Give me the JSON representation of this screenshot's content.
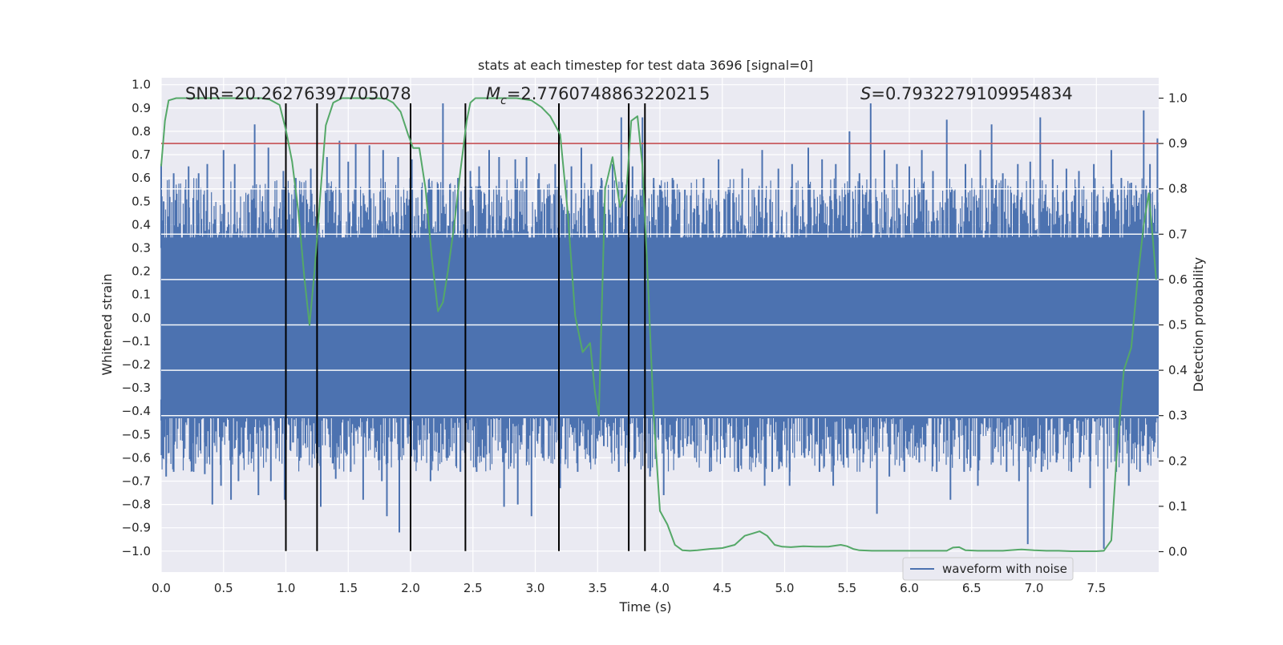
{
  "chart_data": {
    "type": "line",
    "title": "stats at each timestep for test data 3696 [signal=0]",
    "xlabel": "Time (s)",
    "ylabel": "Whitened strain",
    "y2label": "Detection probability",
    "xlim": [
      0.0,
      8.0
    ],
    "ylim": [
      -1.09,
      1.03
    ],
    "y2lim": [
      -0.045,
      1.045
    ],
    "xticks": [
      "0.0",
      "0.5",
      "1.0",
      "1.5",
      "2.0",
      "2.5",
      "3.0",
      "3.5",
      "4.0",
      "4.5",
      "5.0",
      "5.5",
      "6.0",
      "6.5",
      "7.0",
      "7.5"
    ],
    "xtick_values": [
      0.0,
      0.5,
      1.0,
      1.5,
      2.0,
      2.5,
      3.0,
      3.5,
      4.0,
      4.5,
      5.0,
      5.5,
      6.0,
      6.5,
      7.0,
      7.5
    ],
    "yticks": [
      "1.0",
      "0.9",
      "0.8",
      "0.7",
      "0.6",
      "0.5",
      "0.4",
      "0.3",
      "0.2",
      "0.1",
      "0.0",
      "−0.1",
      "−0.2",
      "−0.3",
      "−0.4",
      "−0.5",
      "−0.6",
      "−0.7",
      "−0.8",
      "−0.9",
      "−1.0"
    ],
    "ytick_values": [
      1.0,
      0.9,
      0.8,
      0.7,
      0.6,
      0.5,
      0.4,
      0.3,
      0.2,
      0.1,
      0.0,
      -0.1,
      -0.2,
      -0.3,
      -0.4,
      -0.5,
      -0.6,
      -0.7,
      -0.8,
      -0.9,
      -1.0
    ],
    "y2ticks": [
      "1.0",
      "0.9",
      "0.8",
      "0.7",
      "0.6",
      "0.5",
      "0.4",
      "0.3",
      "0.2",
      "0.1",
      "0.0"
    ],
    "y2tick_values": [
      1.0,
      0.9,
      0.8,
      0.7,
      0.6,
      0.5,
      0.4,
      0.3,
      0.2,
      0.1,
      0.0
    ],
    "threshold": 0.9,
    "threshold_color": "#c44e52",
    "event_lines": [
      1.0,
      1.25,
      2.0,
      2.44,
      3.19,
      3.75,
      3.88
    ],
    "event_line_range": [
      -1.0,
      0.92
    ],
    "annotations": {
      "snr": "SNR=20.26276397705078",
      "mc_symbol": "M",
      "mc_sub": "c",
      "mc_value": "=2.776074886322021 5",
      "s_symbol": "S",
      "s_value": "=0.7932279109954834"
    },
    "waveform": {
      "name": "waveform with noise",
      "color": "#4c72b0",
      "t_start": 0.0,
      "t_end": 8.0,
      "spikes_up": [
        [
          0.0,
          0.66
        ],
        [
          0.02,
          0.5
        ],
        [
          0.1,
          0.62
        ],
        [
          0.22,
          0.65
        ],
        [
          0.3,
          0.62
        ],
        [
          0.37,
          0.66
        ],
        [
          0.5,
          0.72
        ],
        [
          0.59,
          0.66
        ],
        [
          0.75,
          0.83
        ],
        [
          0.86,
          0.73
        ],
        [
          0.98,
          0.63
        ],
        [
          1.08,
          0.6
        ],
        [
          1.2,
          0.64
        ],
        [
          1.33,
          0.69
        ],
        [
          1.43,
          0.76
        ],
        [
          1.5,
          0.67
        ],
        [
          1.56,
          0.75
        ],
        [
          1.67,
          0.74
        ],
        [
          1.78,
          0.72
        ],
        [
          1.9,
          0.69
        ],
        [
          2.01,
          0.68
        ],
        [
          2.15,
          0.58
        ],
        [
          2.26,
          0.92
        ],
        [
          2.38,
          0.6
        ],
        [
          2.48,
          0.63
        ],
        [
          2.55,
          0.65
        ],
        [
          2.63,
          0.72
        ],
        [
          2.71,
          0.69
        ],
        [
          2.84,
          0.68
        ],
        [
          2.93,
          0.69
        ],
        [
          3.03,
          0.62
        ],
        [
          3.16,
          0.66
        ],
        [
          3.29,
          0.65
        ],
        [
          3.37,
          0.73
        ],
        [
          3.45,
          0.66
        ],
        [
          3.53,
          0.6
        ],
        [
          3.62,
          0.66
        ],
        [
          3.69,
          0.86
        ],
        [
          3.78,
          0.65
        ],
        [
          3.86,
          0.86
        ],
        [
          3.95,
          0.6
        ],
        [
          4.1,
          0.6
        ],
        [
          4.2,
          0.55
        ],
        [
          4.35,
          0.6
        ],
        [
          4.47,
          0.68
        ],
        [
          4.55,
          0.56
        ],
        [
          4.66,
          0.64
        ],
        [
          4.82,
          0.72
        ],
        [
          4.95,
          0.64
        ],
        [
          5.06,
          0.66
        ],
        [
          5.19,
          0.73
        ],
        [
          5.3,
          0.68
        ],
        [
          5.41,
          0.66
        ],
        [
          5.52,
          0.8
        ],
        [
          5.6,
          0.62
        ],
        [
          5.69,
          0.92
        ],
        [
          5.8,
          0.72
        ],
        [
          5.9,
          0.66
        ],
        [
          6.0,
          0.65
        ],
        [
          6.1,
          0.72
        ],
        [
          6.19,
          0.63
        ],
        [
          6.3,
          0.85
        ],
        [
          6.45,
          0.66
        ],
        [
          6.57,
          0.72
        ],
        [
          6.66,
          0.83
        ],
        [
          6.75,
          0.62
        ],
        [
          6.87,
          0.66
        ],
        [
          6.97,
          0.67
        ],
        [
          7.05,
          0.86
        ],
        [
          7.15,
          0.68
        ],
        [
          7.26,
          0.64
        ],
        [
          7.36,
          0.63
        ],
        [
          7.48,
          0.66
        ],
        [
          7.62,
          0.72
        ],
        [
          7.7,
          0.6
        ],
        [
          7.78,
          0.58
        ],
        [
          7.88,
          0.89
        ],
        [
          7.93,
          0.66
        ],
        [
          7.99,
          0.77
        ]
      ],
      "spikes_down": [
        [
          0.0,
          -0.44
        ],
        [
          0.04,
          -0.68
        ],
        [
          0.1,
          -0.66
        ],
        [
          0.18,
          -0.6
        ],
        [
          0.26,
          -0.66
        ],
        [
          0.35,
          -0.67
        ],
        [
          0.41,
          -0.8
        ],
        [
          0.48,
          -0.72
        ],
        [
          0.56,
          -0.78
        ],
        [
          0.62,
          -0.7
        ],
        [
          0.78,
          -0.76
        ],
        [
          0.88,
          -0.7
        ],
        [
          0.99,
          -0.78
        ],
        [
          1.12,
          -0.6
        ],
        [
          1.25,
          -0.54
        ],
        [
          1.28,
          -0.81
        ],
        [
          1.4,
          -0.69
        ],
        [
          1.52,
          -0.66
        ],
        [
          1.62,
          -0.78
        ],
        [
          1.77,
          -0.7
        ],
        [
          1.81,
          -0.85
        ],
        [
          1.91,
          -0.92
        ],
        [
          2.05,
          -0.62
        ],
        [
          2.16,
          -0.7
        ],
        [
          2.3,
          -0.6
        ],
        [
          2.4,
          -0.66
        ],
        [
          2.53,
          -0.66
        ],
        [
          2.59,
          -0.6
        ],
        [
          2.75,
          -0.81
        ],
        [
          2.86,
          -0.8
        ],
        [
          2.97,
          -0.85
        ],
        [
          3.06,
          -0.6
        ],
        [
          3.2,
          -0.73
        ],
        [
          3.34,
          -0.66
        ],
        [
          3.44,
          -0.62
        ],
        [
          3.55,
          -0.55
        ],
        [
          3.67,
          -0.66
        ],
        [
          3.8,
          -0.6
        ],
        [
          3.92,
          -0.68
        ],
        [
          4.03,
          -0.76
        ],
        [
          4.15,
          -0.6
        ],
        [
          4.28,
          -0.6
        ],
        [
          4.4,
          -0.66
        ],
        [
          4.52,
          -0.6
        ],
        [
          4.63,
          -0.66
        ],
        [
          4.74,
          -0.6
        ],
        [
          4.84,
          -0.72
        ],
        [
          4.9,
          -0.66
        ],
        [
          5.04,
          -0.72
        ],
        [
          5.16,
          -0.6
        ],
        [
          5.28,
          -0.66
        ],
        [
          5.39,
          -0.72
        ],
        [
          5.5,
          -0.6
        ],
        [
          5.63,
          -0.62
        ],
        [
          5.74,
          -0.84
        ],
        [
          5.84,
          -0.68
        ],
        [
          5.96,
          -0.66
        ],
        [
          6.08,
          -0.62
        ],
        [
          6.22,
          -0.66
        ],
        [
          6.33,
          -0.78
        ],
        [
          6.44,
          -0.66
        ],
        [
          6.55,
          -0.72
        ],
        [
          6.67,
          -0.62
        ],
        [
          6.78,
          -0.66
        ],
        [
          6.88,
          -0.7
        ],
        [
          6.95,
          -0.97
        ],
        [
          7.06,
          -0.66
        ],
        [
          7.18,
          -0.62
        ],
        [
          7.3,
          -0.66
        ],
        [
          7.45,
          -0.73
        ],
        [
          7.56,
          -0.99
        ],
        [
          7.66,
          -0.66
        ],
        [
          7.76,
          -0.72
        ],
        [
          7.85,
          -0.66
        ],
        [
          7.95,
          -0.46
        ]
      ]
    },
    "probability": {
      "name": "detection probability",
      "color": "#55a868",
      "t": [
        0.0,
        0.03,
        0.06,
        0.12,
        0.2,
        0.3,
        0.5,
        0.7,
        0.8,
        0.87,
        0.95,
        1.0,
        1.05,
        1.1,
        1.15,
        1.19,
        1.23,
        1.28,
        1.32,
        1.38,
        1.45,
        1.52,
        1.6,
        1.7,
        1.8,
        1.86,
        1.92,
        1.98,
        2.02,
        2.07,
        2.12,
        2.17,
        2.22,
        2.26,
        2.3,
        2.35,
        2.4,
        2.45,
        2.48,
        2.52,
        2.58,
        2.65,
        2.75,
        2.85,
        2.97,
        3.05,
        3.12,
        3.2,
        3.26,
        3.32,
        3.38,
        3.44,
        3.48,
        3.51,
        3.56,
        3.62,
        3.68,
        3.73,
        3.77,
        3.82,
        3.86,
        3.9,
        3.95,
        4.0,
        4.06,
        4.12,
        4.18,
        4.24,
        4.3,
        4.4,
        4.5,
        4.6,
        4.68,
        4.74,
        4.8,
        4.86,
        4.92,
        4.98,
        5.05,
        5.15,
        5.25,
        5.35,
        5.45,
        5.5,
        5.55,
        5.6,
        5.7,
        5.8,
        5.9,
        6.0,
        6.1,
        6.2,
        6.3,
        6.35,
        6.4,
        6.45,
        6.55,
        6.65,
        6.75,
        6.85,
        6.9,
        6.95,
        7.0,
        7.1,
        7.2,
        7.3,
        7.4,
        7.5,
        7.56,
        7.62,
        7.66,
        7.72,
        7.78,
        7.83,
        7.88,
        7.92,
        7.95,
        7.98
      ],
      "p": [
        0.85,
        0.95,
        0.995,
        1.0,
        1.0,
        1.0,
        1.0,
        1.0,
        1.0,
        0.997,
        0.985,
        0.93,
        0.86,
        0.75,
        0.6,
        0.5,
        0.62,
        0.8,
        0.94,
        0.99,
        1.0,
        1.0,
        1.0,
        1.0,
        0.999,
        0.99,
        0.97,
        0.92,
        0.89,
        0.89,
        0.8,
        0.65,
        0.53,
        0.55,
        0.62,
        0.72,
        0.84,
        0.95,
        0.99,
        1.0,
        1.0,
        1.0,
        1.0,
        1.0,
        0.995,
        0.98,
        0.96,
        0.92,
        0.75,
        0.52,
        0.44,
        0.46,
        0.35,
        0.3,
        0.8,
        0.87,
        0.76,
        0.79,
        0.95,
        0.96,
        0.85,
        0.62,
        0.3,
        0.09,
        0.06,
        0.015,
        0.003,
        0.002,
        0.003,
        0.006,
        0.008,
        0.015,
        0.035,
        0.04,
        0.045,
        0.035,
        0.015,
        0.011,
        0.01,
        0.012,
        0.011,
        0.011,
        0.015,
        0.012,
        0.006,
        0.003,
        0.002,
        0.002,
        0.002,
        0.002,
        0.002,
        0.002,
        0.002,
        0.009,
        0.01,
        0.003,
        0.002,
        0.002,
        0.002,
        0.004,
        0.005,
        0.004,
        0.003,
        0.002,
        0.002,
        0.001,
        0.001,
        0.001,
        0.002,
        0.025,
        0.2,
        0.4,
        0.45,
        0.6,
        0.72,
        0.79,
        0.7,
        0.6,
        0.55
      ]
    },
    "legend": {
      "entries": [
        "waveform with noise"
      ],
      "placement": "bottom-right"
    }
  }
}
